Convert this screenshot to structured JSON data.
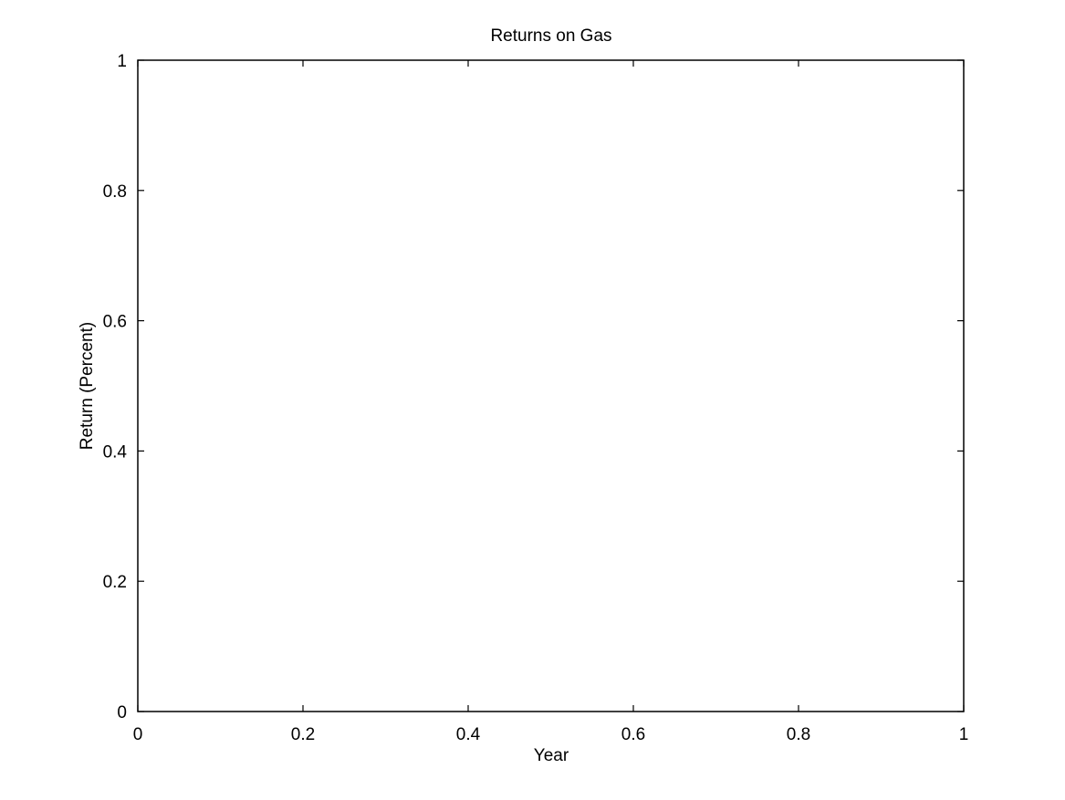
{
  "chart_data": {
    "type": "line",
    "title": "Returns on Gas",
    "xlabel": "Year",
    "ylabel": "Return (Percent)",
    "xlim": [
      0,
      1
    ],
    "ylim": [
      0,
      1
    ],
    "xticks": [
      0,
      0.2,
      0.4,
      0.6,
      0.8,
      1
    ],
    "xtick_labels": [
      "0",
      "0.2",
      "0.4",
      "0.6",
      "0.8",
      "1"
    ],
    "yticks": [
      0,
      0.2,
      0.4,
      0.6,
      0.8,
      1
    ],
    "ytick_labels": [
      "0",
      "0.2",
      "0.4",
      "0.6",
      "0.8",
      "1"
    ],
    "grid": false,
    "series": []
  },
  "colors": {
    "axis": "#000000",
    "background": "#ffffff"
  }
}
